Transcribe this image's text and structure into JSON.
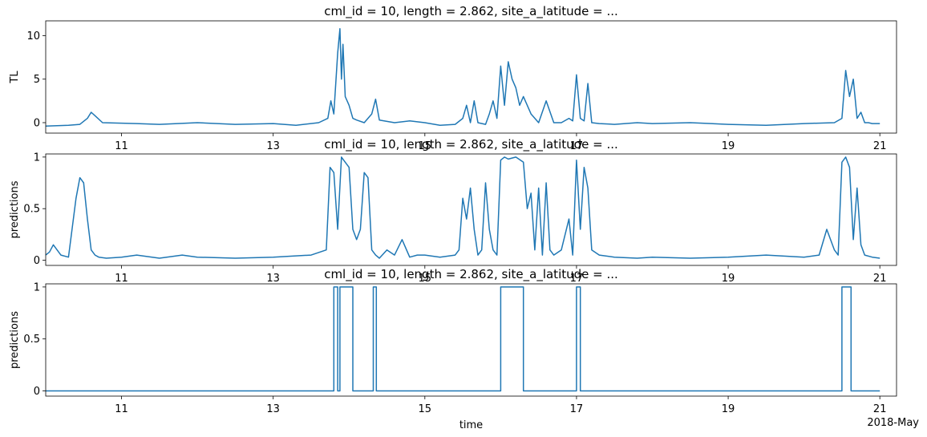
{
  "chart_data": [
    {
      "type": "line",
      "title": "cml_id = 10, length = 2.862, site_a_latitude = ...",
      "xlabel": "",
      "ylabel": "TL",
      "xlim": [
        10.0,
        21.22
      ],
      "ylim": [
        -1.2,
        11.7
      ],
      "xticks": [
        11,
        13,
        15,
        17,
        19,
        21
      ],
      "yticks": [
        0,
        5,
        10
      ],
      "series": [
        {
          "color": "#1f77b4",
          "x": [
            10.0,
            10.3,
            10.45,
            10.55,
            10.6,
            10.65,
            10.75,
            11.2,
            11.5,
            12.0,
            12.5,
            13.0,
            13.3,
            13.6,
            13.72,
            13.76,
            13.8,
            13.85,
            13.88,
            13.9,
            13.92,
            13.95,
            14.0,
            14.05,
            14.1,
            14.2,
            14.3,
            14.35,
            14.4,
            14.6,
            14.8,
            15.0,
            15.2,
            15.4,
            15.5,
            15.55,
            15.6,
            15.65,
            15.7,
            15.8,
            15.85,
            15.9,
            15.95,
            16.0,
            16.05,
            16.1,
            16.15,
            16.2,
            16.25,
            16.3,
            16.4,
            16.5,
            16.6,
            16.7,
            16.8,
            16.9,
            16.95,
            17.0,
            17.05,
            17.1,
            17.15,
            17.2,
            17.3,
            17.5,
            17.8,
            18.0,
            18.5,
            19.0,
            19.5,
            20.0,
            20.4,
            20.5,
            20.55,
            20.6,
            20.65,
            20.7,
            20.75,
            20.8,
            20.85,
            20.9,
            21.0
          ],
          "y": [
            -0.4,
            -0.3,
            -0.2,
            0.5,
            1.2,
            0.8,
            0.0,
            -0.1,
            -0.2,
            0.0,
            -0.2,
            -0.1,
            -0.3,
            0.0,
            0.5,
            2.5,
            1.0,
            8.0,
            10.8,
            5.0,
            9.0,
            3.0,
            2.0,
            0.5,
            0.3,
            0.0,
            1.0,
            2.7,
            0.3,
            0.0,
            0.2,
            0.0,
            -0.3,
            -0.2,
            0.5,
            2.0,
            0.0,
            2.5,
            0.0,
            -0.2,
            1.0,
            2.5,
            0.5,
            6.5,
            2.0,
            7.0,
            5.0,
            4.0,
            2.0,
            3.0,
            1.0,
            0.0,
            2.5,
            0.0,
            0.0,
            0.5,
            0.2,
            5.5,
            0.5,
            0.2,
            4.5,
            0.0,
            -0.1,
            -0.2,
            0.0,
            -0.1,
            0.0,
            -0.2,
            -0.3,
            -0.1,
            0.0,
            0.5,
            6.0,
            3.0,
            5.0,
            0.5,
            1.2,
            0.0,
            0.0,
            -0.1,
            -0.1
          ]
        }
      ]
    },
    {
      "type": "line",
      "title": "cml_id = 10, length = 2.862, site_a_latitude = ...",
      "xlabel": "",
      "ylabel": "predictions",
      "xlim": [
        10.0,
        21.22
      ],
      "ylim": [
        -0.05,
        1.03
      ],
      "xticks": [
        11,
        13,
        15,
        17,
        19,
        21
      ],
      "yticks": [
        0.0,
        0.5,
        1.0
      ],
      "series": [
        {
          "color": "#1f77b4",
          "x": [
            10.0,
            10.05,
            10.1,
            10.15,
            10.2,
            10.3,
            10.4,
            10.45,
            10.5,
            10.55,
            10.6,
            10.65,
            10.7,
            10.8,
            11.0,
            11.2,
            11.5,
            11.8,
            12.0,
            12.5,
            13.0,
            13.5,
            13.7,
            13.75,
            13.8,
            13.85,
            13.9,
            13.95,
            14.0,
            14.05,
            14.1,
            14.15,
            14.2,
            14.25,
            14.3,
            14.35,
            14.4,
            14.5,
            14.6,
            14.7,
            14.8,
            14.9,
            15.0,
            15.2,
            15.4,
            15.45,
            15.5,
            15.55,
            15.6,
            15.65,
            15.7,
            15.75,
            15.8,
            15.85,
            15.9,
            15.95,
            16.0,
            16.05,
            16.1,
            16.2,
            16.3,
            16.35,
            16.4,
            16.45,
            16.5,
            16.55,
            16.6,
            16.65,
            16.7,
            16.8,
            16.9,
            16.95,
            17.0,
            17.05,
            17.1,
            17.15,
            17.2,
            17.3,
            17.5,
            17.8,
            18.0,
            18.5,
            19.0,
            19.5,
            20.0,
            20.2,
            20.3,
            20.4,
            20.45,
            20.5,
            20.55,
            20.6,
            20.65,
            20.7,
            20.75,
            20.8,
            20.9,
            21.0
          ],
          "y": [
            0.05,
            0.08,
            0.15,
            0.1,
            0.05,
            0.03,
            0.6,
            0.8,
            0.75,
            0.4,
            0.1,
            0.05,
            0.03,
            0.02,
            0.03,
            0.05,
            0.02,
            0.05,
            0.03,
            0.02,
            0.03,
            0.05,
            0.1,
            0.9,
            0.85,
            0.3,
            1.0,
            0.95,
            0.9,
            0.3,
            0.2,
            0.3,
            0.85,
            0.8,
            0.1,
            0.05,
            0.02,
            0.1,
            0.05,
            0.2,
            0.03,
            0.05,
            0.05,
            0.03,
            0.05,
            0.1,
            0.6,
            0.4,
            0.7,
            0.3,
            0.05,
            0.1,
            0.75,
            0.3,
            0.1,
            0.05,
            0.97,
            1.0,
            0.98,
            1.0,
            0.95,
            0.5,
            0.65,
            0.1,
            0.7,
            0.05,
            0.75,
            0.1,
            0.05,
            0.1,
            0.4,
            0.05,
            0.97,
            0.3,
            0.9,
            0.7,
            0.1,
            0.05,
            0.03,
            0.02,
            0.03,
            0.02,
            0.03,
            0.05,
            0.03,
            0.05,
            0.3,
            0.1,
            0.05,
            0.95,
            1.0,
            0.9,
            0.2,
            0.7,
            0.15,
            0.05,
            0.03,
            0.02
          ]
        }
      ]
    },
    {
      "type": "line",
      "title": "cml_id = 10, length = 2.862, site_a_latitude = ...",
      "xlabel": "time",
      "ylabel": "predictions",
      "xlim": [
        10.0,
        21.22
      ],
      "ylim": [
        -0.05,
        1.03
      ],
      "xticks": [
        11,
        13,
        15,
        17,
        19,
        21
      ],
      "yticks": [
        0.0,
        0.5,
        1.0
      ],
      "x_offset_label": "2018-May",
      "series": [
        {
          "color": "#1f77b4",
          "step": true,
          "x": [
            10.0,
            13.8,
            13.8,
            13.85,
            13.85,
            13.88,
            13.88,
            14.05,
            14.05,
            14.32,
            14.32,
            14.36,
            14.36,
            16.0,
            16.0,
            16.3,
            16.3,
            17.0,
            17.0,
            17.05,
            17.05,
            20.5,
            20.5,
            20.62,
            20.62,
            21.0
          ],
          "y": [
            0,
            0,
            1,
            1,
            0,
            0,
            1,
            1,
            0,
            0,
            1,
            1,
            0,
            0,
            1,
            1,
            0,
            0,
            1,
            1,
            0,
            0,
            1,
            1,
            0,
            0
          ]
        }
      ]
    }
  ]
}
